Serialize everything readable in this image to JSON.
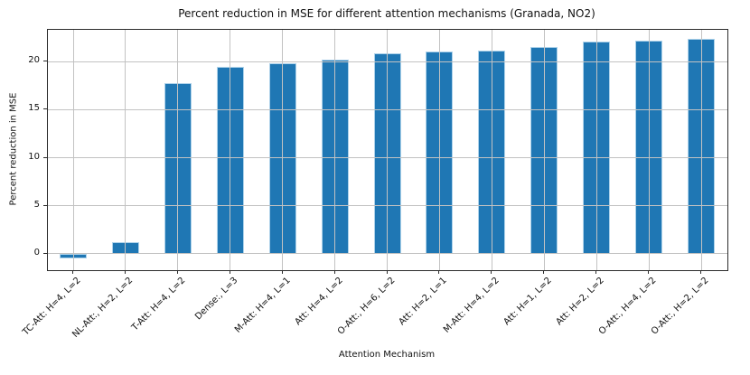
{
  "chart_data": {
    "type": "bar",
    "title": "Percent reduction in MSE for different attention mechanisms (Granada, NO2)",
    "xlabel": "Attention Mechanism",
    "ylabel": "Percent reduction in MSE",
    "categories": [
      "TC-Att: H=4, L=2",
      "NL-Att:, H=2, L=2",
      "T-Att: H=4, L=2",
      "Dense:, L=3",
      "M-Att: H=4, L=1",
      "Att: H=4, L=2",
      "O-Att:, H=6, L=2",
      "Att: H=2, L=1",
      "M-Att: H=4, L=2",
      "Att: H=1, L=2",
      "Att: H=2, L=2",
      "O-Att:, H=4, L=2",
      "O-Att:, H=2, L=2"
    ],
    "values": [
      -0.5,
      1.2,
      17.8,
      19.4,
      19.8,
      20.2,
      20.9,
      21.0,
      21.1,
      21.5,
      22.1,
      22.2,
      22.4
    ],
    "yticks": [
      0,
      5,
      10,
      15,
      20
    ],
    "ylim": [
      -1.7,
      23.3
    ],
    "grid": true,
    "grid_on_top": true,
    "legend": "none",
    "bar_color": "#1f77b4",
    "bar_edge_color": "#add2ea",
    "grid_color": "#c2c2c2",
    "spine_color": "#2b2b2b",
    "text_color": "#111111"
  }
}
